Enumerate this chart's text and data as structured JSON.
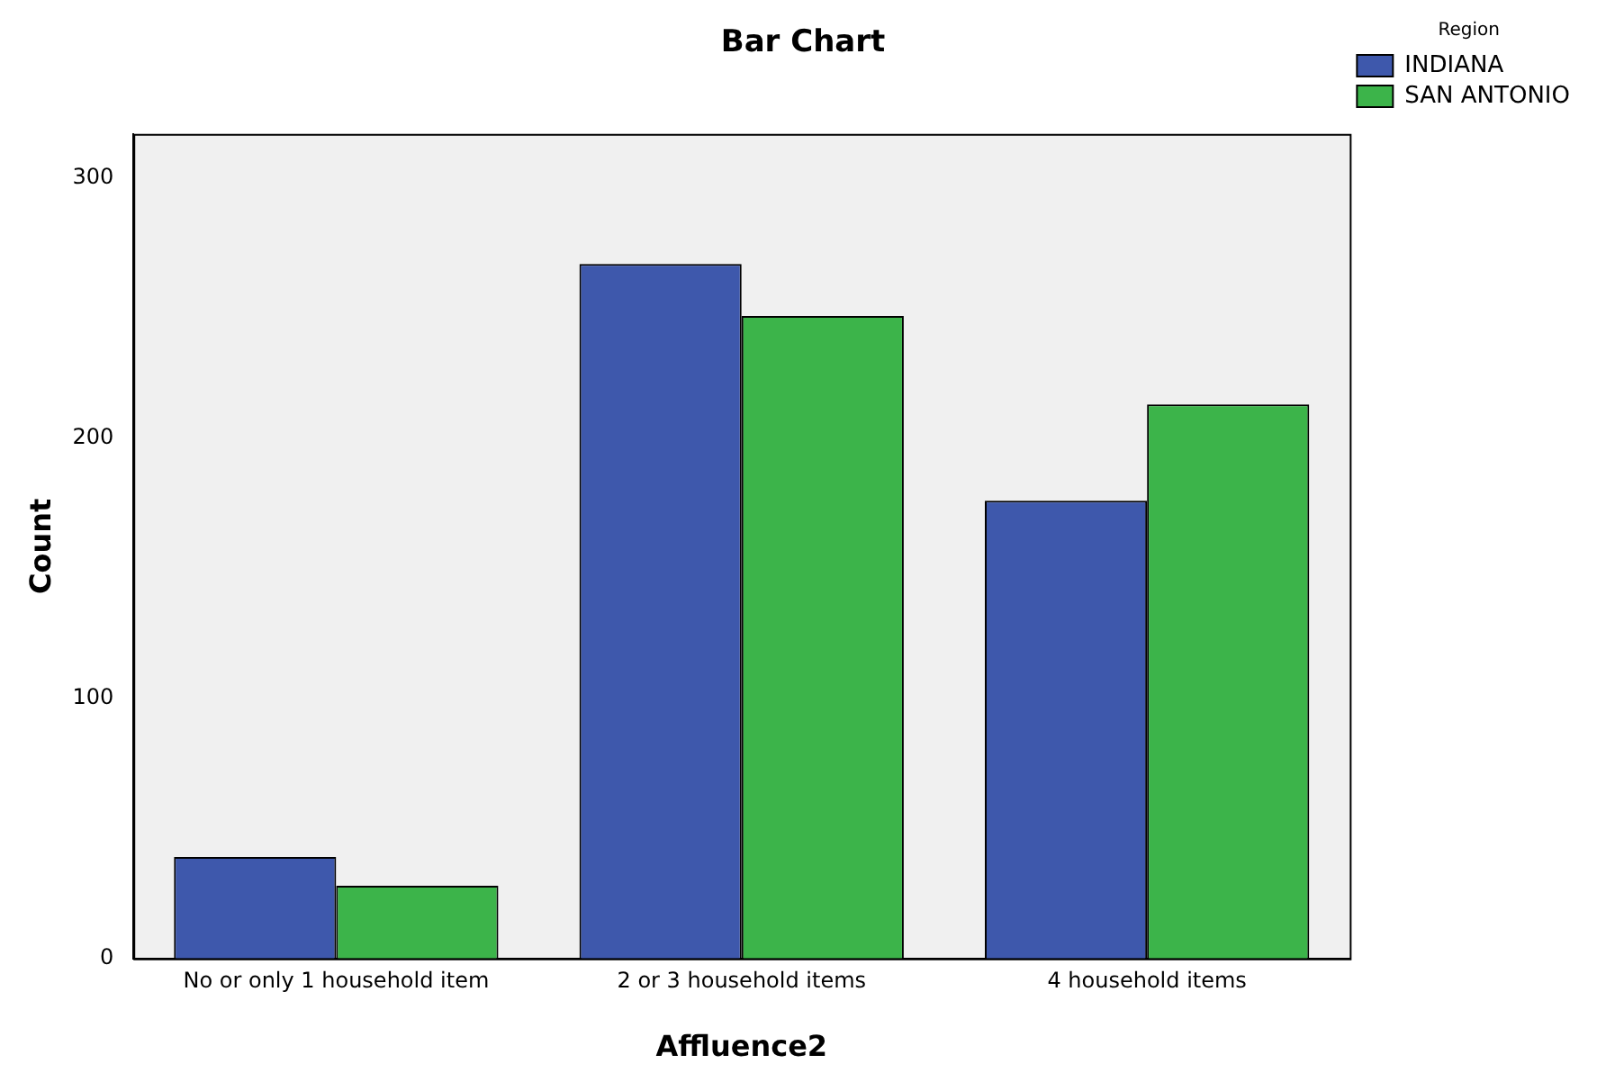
{
  "chart_data": {
    "type": "bar",
    "title": "Bar Chart",
    "xlabel": "Affluence2",
    "ylabel": "Count",
    "legend_title": "Region",
    "categories": [
      "No or only 1 household item",
      "2 or 3 household items",
      "4 household items"
    ],
    "series": [
      {
        "name": "INDIANA",
        "color": "#3e58ac",
        "values": [
          39,
          267,
          176
        ]
      },
      {
        "name": "SAN ANTONIO",
        "color": "#3cb44a",
        "values": [
          28,
          247,
          213
        ]
      }
    ],
    "ylim": [
      0,
      317
    ],
    "yticks": [
      0,
      100,
      200,
      300
    ],
    "grid": false,
    "legend": "top right"
  }
}
